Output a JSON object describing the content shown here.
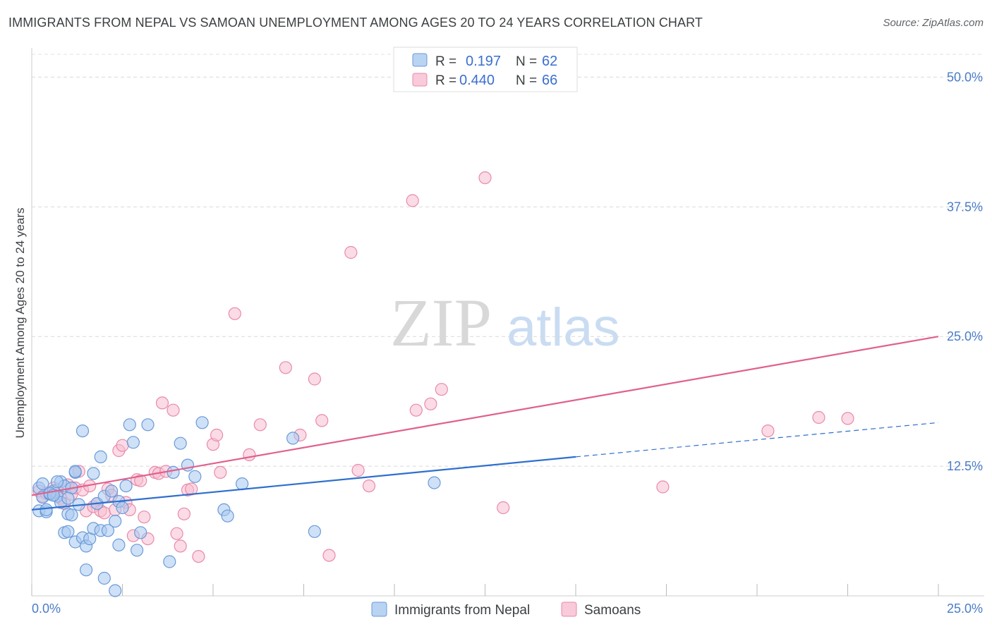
{
  "title": "IMMIGRANTS FROM NEPAL VS SAMOAN UNEMPLOYMENT AMONG AGES 20 TO 24 YEARS CORRELATION CHART",
  "source": "Source: ZipAtlas.com",
  "watermark": {
    "zip": "ZIP",
    "atlas": "atlas"
  },
  "colors": {
    "nepal_fill": "#a8c8f0",
    "nepal_stroke": "#6a9ad8",
    "nepal_line": "#2f6fce",
    "samoan_fill": "#f7bdd0",
    "samoan_stroke": "#e88aab",
    "samoan_line": "#e0608e",
    "tick_text": "#4a7cc9"
  },
  "legend": {
    "r_label": "R =",
    "n_label": "N =",
    "rows": [
      {
        "r": "0.197",
        "n": "62"
      },
      {
        "r": "0.440",
        "n": "66"
      }
    ]
  },
  "chart_data": {
    "type": "scatter",
    "title": "IMMIGRANTS FROM NEPAL VS SAMOAN UNEMPLOYMENT AMONG AGES 20 TO 24 YEARS CORRELATION CHART",
    "xlabel": "",
    "ylabel": "Unemployment Among Ages 20 to 24 years",
    "xlim": [
      0,
      25
    ],
    "ylim": [
      0,
      50
    ],
    "x_tick_labels": [
      "0.0%",
      "25.0%"
    ],
    "y_ticks": [
      12.5,
      25.0,
      37.5,
      50.0
    ],
    "y_tick_labels": [
      "12.5%",
      "25.0%",
      "37.5%",
      "50.0%"
    ],
    "grid": true,
    "legend_position": "top-center",
    "series": [
      {
        "name": "Immigrants from Nepal",
        "r": 0.197,
        "n": 62,
        "trend": {
          "x": [
            0,
            15
          ],
          "y": [
            8.3,
            13.4
          ],
          "dashed_to_x": 25,
          "dashed_to_y": 16.7
        },
        "points": [
          [
            0.2,
            10.4
          ],
          [
            0.3,
            9.5
          ],
          [
            0.2,
            8.2
          ],
          [
            0.4,
            8.1
          ],
          [
            0.5,
            9.8
          ],
          [
            0.6,
            10.1
          ],
          [
            0.7,
            9.6
          ],
          [
            0.8,
            9.0
          ],
          [
            0.8,
            11.0
          ],
          [
            0.9,
            10.6
          ],
          [
            0.9,
            6.1
          ],
          [
            1.0,
            7.9
          ],
          [
            1.0,
            6.2
          ],
          [
            1.1,
            7.8
          ],
          [
            1.1,
            10.4
          ],
          [
            1.2,
            11.9
          ],
          [
            1.2,
            5.2
          ],
          [
            1.3,
            8.8
          ],
          [
            1.4,
            15.9
          ],
          [
            1.4,
            5.6
          ],
          [
            1.5,
            4.8
          ],
          [
            1.5,
            2.5
          ],
          [
            1.6,
            5.5
          ],
          [
            1.7,
            6.5
          ],
          [
            1.7,
            11.8
          ],
          [
            1.8,
            8.9
          ],
          [
            1.9,
            13.4
          ],
          [
            1.9,
            6.3
          ],
          [
            2.0,
            1.7
          ],
          [
            2.0,
            9.6
          ],
          [
            2.1,
            6.3
          ],
          [
            2.2,
            10.1
          ],
          [
            2.3,
            7.2
          ],
          [
            2.3,
            0.5
          ],
          [
            2.4,
            9.1
          ],
          [
            2.4,
            4.9
          ],
          [
            2.5,
            8.5
          ],
          [
            2.6,
            10.6
          ],
          [
            2.7,
            16.5
          ],
          [
            2.8,
            14.8
          ],
          [
            2.9,
            4.4
          ],
          [
            3.0,
            6.1
          ],
          [
            3.2,
            16.5
          ],
          [
            3.8,
            3.3
          ],
          [
            3.9,
            11.9
          ],
          [
            4.1,
            14.7
          ],
          [
            4.3,
            12.6
          ],
          [
            4.5,
            11.5
          ],
          [
            4.7,
            16.7
          ],
          [
            5.3,
            8.3
          ],
          [
            5.4,
            7.7
          ],
          [
            5.8,
            10.8
          ],
          [
            7.2,
            15.2
          ],
          [
            7.8,
            6.2
          ],
          [
            11.1,
            10.9
          ],
          [
            0.3,
            10.8
          ],
          [
            0.5,
            9.9
          ],
          [
            0.7,
            11.0
          ],
          [
            1.0,
            9.4
          ],
          [
            1.2,
            12.0
          ],
          [
            0.4,
            8.3
          ],
          [
            0.6,
            9.7
          ]
        ]
      },
      {
        "name": "Samoans",
        "r": 0.44,
        "n": 66,
        "trend": {
          "x": [
            0,
            25
          ],
          "y": [
            9.7,
            25.0
          ]
        },
        "points": [
          [
            0.2,
            10.1
          ],
          [
            0.3,
            9.6
          ],
          [
            0.5,
            9.9
          ],
          [
            0.6,
            10.4
          ],
          [
            0.7,
            10.2
          ],
          [
            0.8,
            9.4
          ],
          [
            0.9,
            8.9
          ],
          [
            1.0,
            10.7
          ],
          [
            1.1,
            9.8
          ],
          [
            1.2,
            10.4
          ],
          [
            1.3,
            12.0
          ],
          [
            1.4,
            10.2
          ],
          [
            1.5,
            8.2
          ],
          [
            1.6,
            10.6
          ],
          [
            1.7,
            8.6
          ],
          [
            1.8,
            8.9
          ],
          [
            1.9,
            8.2
          ],
          [
            2.0,
            8.0
          ],
          [
            2.1,
            10.3
          ],
          [
            2.2,
            9.7
          ],
          [
            2.3,
            8.3
          ],
          [
            2.4,
            14.0
          ],
          [
            2.5,
            14.5
          ],
          [
            2.6,
            9.0
          ],
          [
            2.7,
            8.3
          ],
          [
            2.8,
            5.8
          ],
          [
            2.9,
            11.2
          ],
          [
            3.0,
            11.1
          ],
          [
            3.1,
            7.6
          ],
          [
            3.2,
            5.5
          ],
          [
            3.4,
            11.9
          ],
          [
            3.5,
            11.8
          ],
          [
            3.6,
            18.6
          ],
          [
            3.7,
            12.0
          ],
          [
            3.9,
            17.9
          ],
          [
            4.0,
            6.0
          ],
          [
            4.1,
            4.8
          ],
          [
            4.2,
            7.9
          ],
          [
            4.3,
            10.2
          ],
          [
            4.4,
            10.3
          ],
          [
            4.6,
            3.8
          ],
          [
            5.0,
            14.6
          ],
          [
            5.1,
            15.5
          ],
          [
            5.2,
            11.9
          ],
          [
            5.6,
            27.2
          ],
          [
            6.0,
            13.6
          ],
          [
            6.3,
            16.5
          ],
          [
            7.0,
            22.0
          ],
          [
            7.4,
            15.5
          ],
          [
            7.8,
            20.9
          ],
          [
            8.0,
            16.9
          ],
          [
            8.2,
            3.9
          ],
          [
            8.8,
            33.1
          ],
          [
            9.0,
            12.1
          ],
          [
            9.3,
            10.6
          ],
          [
            10.5,
            38.1
          ],
          [
            10.6,
            17.9
          ],
          [
            11.0,
            18.5
          ],
          [
            11.3,
            19.9
          ],
          [
            12.5,
            40.3
          ],
          [
            13.0,
            8.5
          ],
          [
            17.4,
            10.5
          ],
          [
            20.3,
            15.9
          ],
          [
            21.7,
            17.2
          ],
          [
            22.5,
            17.1
          ],
          [
            0.4,
            9.9
          ]
        ]
      }
    ]
  },
  "bottom_legend": [
    "Immigrants from Nepal",
    "Samoans"
  ]
}
